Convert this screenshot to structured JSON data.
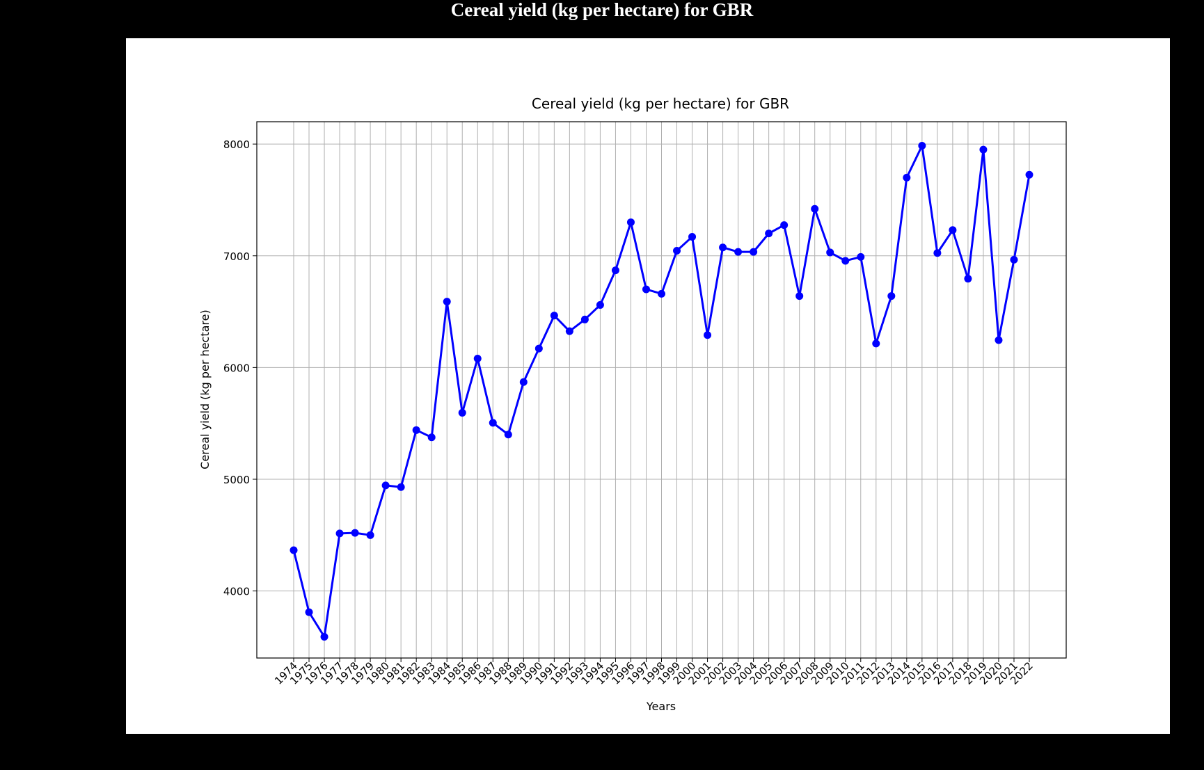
{
  "page_title": "Cereal yield (kg per hectare) for GBR",
  "chart_data": {
    "type": "line",
    "title": "Cereal yield (kg per hectare) for GBR",
    "xlabel": "Years",
    "ylabel": "Cereal yield (kg per hectare)",
    "ylim": [
      3400,
      8200
    ],
    "yticks": [
      4000,
      5000,
      6000,
      7000,
      8000
    ],
    "grid": true,
    "line_color": "#0000ff",
    "categories": [
      "1974",
      "1975",
      "1976",
      "1977",
      "1978",
      "1979",
      "1980",
      "1981",
      "1982",
      "1983",
      "1984",
      "1985",
      "1986",
      "1987",
      "1988",
      "1989",
      "1990",
      "1991",
      "1992",
      "1993",
      "1994",
      "1995",
      "1996",
      "1997",
      "1998",
      "1999",
      "2000",
      "2001",
      "2002",
      "2003",
      "2004",
      "2005",
      "2006",
      "2007",
      "2008",
      "2009",
      "2010",
      "2011",
      "2012",
      "2013",
      "2014",
      "2015",
      "2016",
      "2017",
      "2018",
      "2019",
      "2020",
      "2021",
      "2022"
    ],
    "values": [
      4365,
      3810,
      3590,
      4515,
      4520,
      4500,
      4945,
      4930,
      5440,
      5375,
      6590,
      5595,
      6080,
      5505,
      5400,
      5870,
      6170,
      6465,
      6325,
      6430,
      6560,
      6870,
      7300,
      6700,
      6660,
      7045,
      7170,
      6290,
      7075,
      7035,
      7035,
      7200,
      7275,
      6640,
      7420,
      7030,
      6955,
      6990,
      6215,
      6640,
      7700,
      7985,
      7025,
      7230,
      6795,
      7950,
      6245,
      6965,
      7725
    ]
  }
}
